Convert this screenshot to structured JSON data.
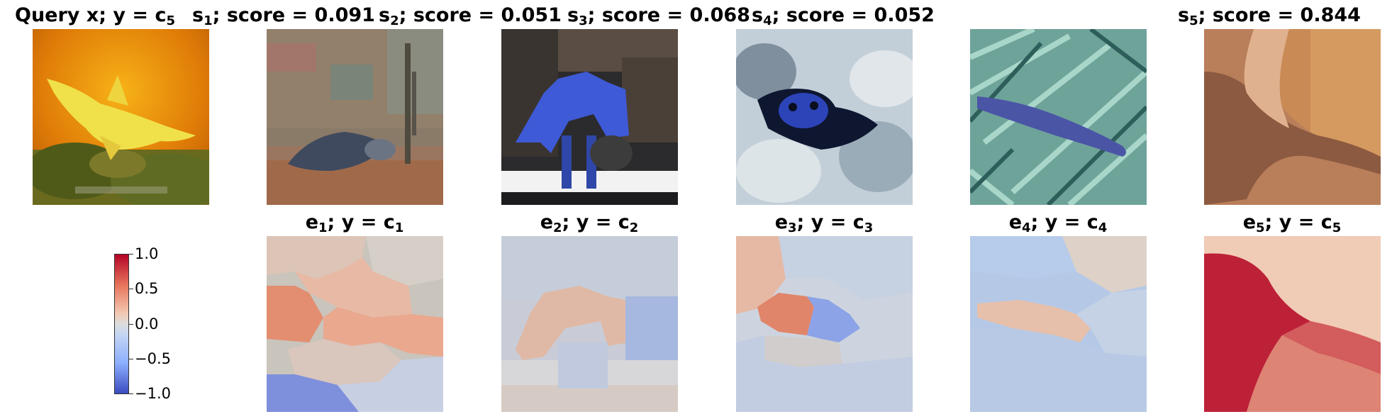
{
  "top_row": [
    {
      "pre": "Query x; y = c",
      "sub": "5",
      "post": ""
    },
    {
      "pre": "s",
      "sub": "1",
      "post": "; score = 0.091"
    },
    {
      "pre": "s",
      "sub": "2",
      "post": "; score = 0.051"
    },
    {
      "pre": "s",
      "sub": "3",
      "post": "; score = 0.068"
    },
    {
      "pre": "s",
      "sub": "4",
      "post": "; score = 0.052"
    },
    {
      "pre": "s",
      "sub": "5",
      "post": "; score = 0.844"
    }
  ],
  "bottom_row": [
    {
      "pre": "e",
      "sub": "1",
      "mid": "; y = c",
      "sub2": "1"
    },
    {
      "pre": "e",
      "sub": "2",
      "mid": "; y = c",
      "sub2": "2"
    },
    {
      "pre": "e",
      "sub": "3",
      "mid": "; y = c",
      "sub2": "3"
    },
    {
      "pre": "e",
      "sub": "4",
      "mid": "; y = c",
      "sub2": "4"
    },
    {
      "pre": "e",
      "sub": "5",
      "mid": "; y = c",
      "sub2": "5"
    }
  ],
  "colorbar": {
    "ticks": [
      "1.0",
      "0.5",
      "0.0",
      "−0.5",
      "−1.0"
    ],
    "range": [
      -1.0,
      1.0
    ],
    "colormap": [
      "#b40426",
      "#e7745b",
      "#f3c7b1",
      "#dcdddd",
      "#c4d5f3",
      "#8caffe",
      "#3b4cc0"
    ]
  }
}
